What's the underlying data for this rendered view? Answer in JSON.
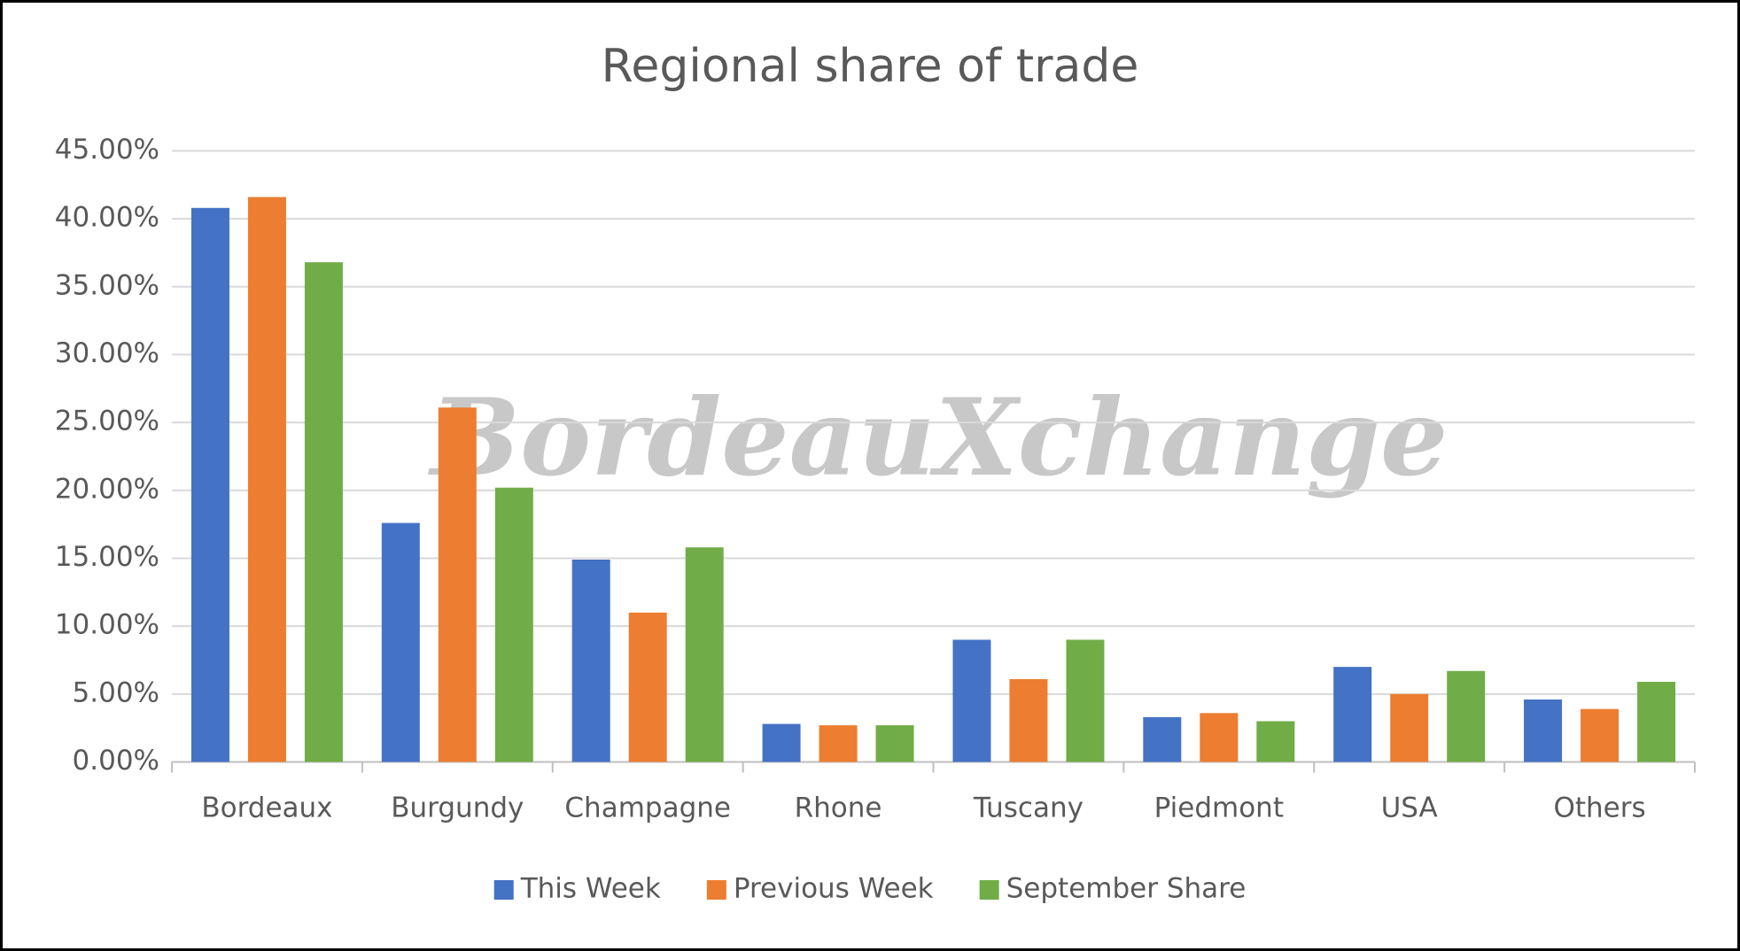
{
  "chart_data": {
    "type": "bar",
    "title": "Regional share of trade",
    "watermark": "BordeauXchange",
    "categories": [
      "Bordeaux",
      "Burgundy",
      "Champagne",
      "Rhone",
      "Tuscany",
      "Piedmont",
      "USA",
      "Others"
    ],
    "series": [
      {
        "name": "This Week",
        "color": "#4472c4",
        "values": [
          40.8,
          17.6,
          14.9,
          2.8,
          9.0,
          3.3,
          7.0,
          4.6
        ]
      },
      {
        "name": "Previous Week",
        "color": "#ed7d31",
        "values": [
          41.6,
          26.1,
          11.0,
          2.7,
          6.1,
          3.6,
          5.0,
          3.9
        ]
      },
      {
        "name": "September Share",
        "color": "#70ad47",
        "values": [
          36.8,
          20.2,
          15.8,
          2.7,
          9.0,
          3.0,
          6.7,
          5.9
        ]
      }
    ],
    "ylim": [
      0,
      45
    ],
    "yticks": [
      {
        "value": 0,
        "label": "0.00%"
      },
      {
        "value": 5,
        "label": "5.00%"
      },
      {
        "value": 10,
        "label": "10.00%"
      },
      {
        "value": 15,
        "label": "15.00%"
      },
      {
        "value": 20,
        "label": "20.00%"
      },
      {
        "value": 25,
        "label": "25.00%"
      },
      {
        "value": 30,
        "label": "30.00%"
      },
      {
        "value": 35,
        "label": "35.00%"
      },
      {
        "value": 40,
        "label": "40.00%"
      },
      {
        "value": 45,
        "label": "45.00%"
      }
    ],
    "grid": true,
    "legend": "bottom"
  }
}
